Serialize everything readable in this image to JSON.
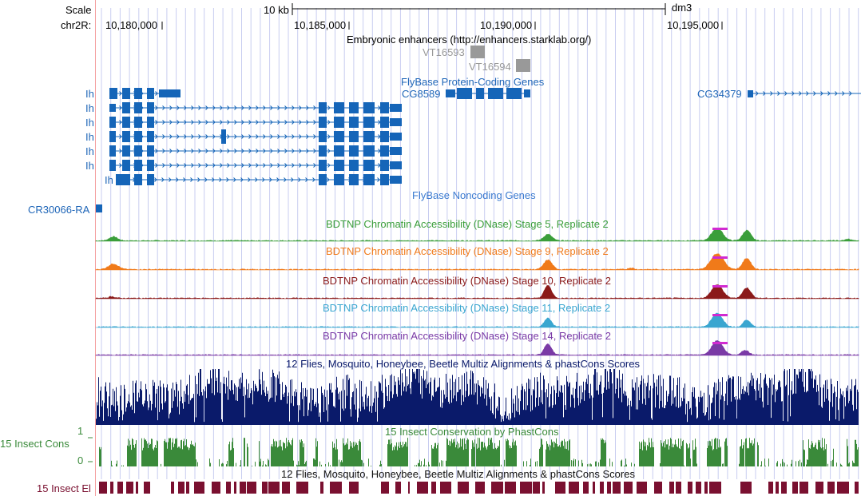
{
  "header": {
    "scale_label": "Scale",
    "scale_bar_label": "10 kb",
    "assembly": "dm3",
    "chrom_label": "chr2R:",
    "positions": [
      "10,180,000",
      "10,185,000",
      "10,190,000",
      "10,195,000"
    ]
  },
  "tracks": {
    "enhancers": {
      "title": "Embryonic enhancers (http://enhancers.starklab.org/)",
      "items": [
        "VT16593",
        "VT16594"
      ]
    },
    "flybase_coding": {
      "title": "FlyBase Protein-Coding Genes",
      "genes": [
        "Ih",
        "Ih",
        "Ih",
        "Ih",
        "Ih",
        "Ih",
        "Ih",
        "CG8589",
        "CG34379"
      ]
    },
    "flybase_noncoding": {
      "title": "FlyBase Noncoding Genes",
      "genes": [
        "CR30066-RA"
      ]
    },
    "dnase": [
      {
        "title": "BDTNP Chromatin Accessibility (DNase) Stage 5, Replicate 2",
        "color": "#3a9e3a"
      },
      {
        "title": "BDTNP Chromatin Accessibility (DNase) Stage 9, Replicate 2",
        "color": "#f07a1a"
      },
      {
        "title": "BDTNP Chromatin Accessibility (DNase) Stage 10, Replicate 2",
        "color": "#8b1a1a"
      },
      {
        "title": "BDTNP Chromatin Accessibility (DNase) Stage 11, Replicate 2",
        "color": "#3aa6d0"
      },
      {
        "title": "BDTNP Chromatin Accessibility (DNase) Stage 14, Replicate 2",
        "color": "#7a3aa6"
      }
    ],
    "multiz": {
      "title": "12 Flies, Mosquito, Honeybee, Beetle Multiz Alignments & phastCons Scores",
      "color": "#0a1a6a"
    },
    "phastcons": {
      "title": "15 Insect Conservation by PhastCons",
      "side_label": "15 Insect Cons",
      "axis_max": "1",
      "axis_min": "0",
      "color": "#3a8a3a"
    },
    "elements": {
      "title": "12 Flies, Mosquito, Honeybee, Beetle Multiz Alignments & phastCons Scores",
      "side_label": "15 Insect El",
      "color": "#7a1030"
    }
  },
  "colors": {
    "gene": "#1565b8",
    "gene_label": "#1f66b8",
    "noncoding_title": "#3a7ad0",
    "enhancer": "#999999",
    "guide": "#c8cdf0",
    "left_edge": "#f4a0a0"
  }
}
